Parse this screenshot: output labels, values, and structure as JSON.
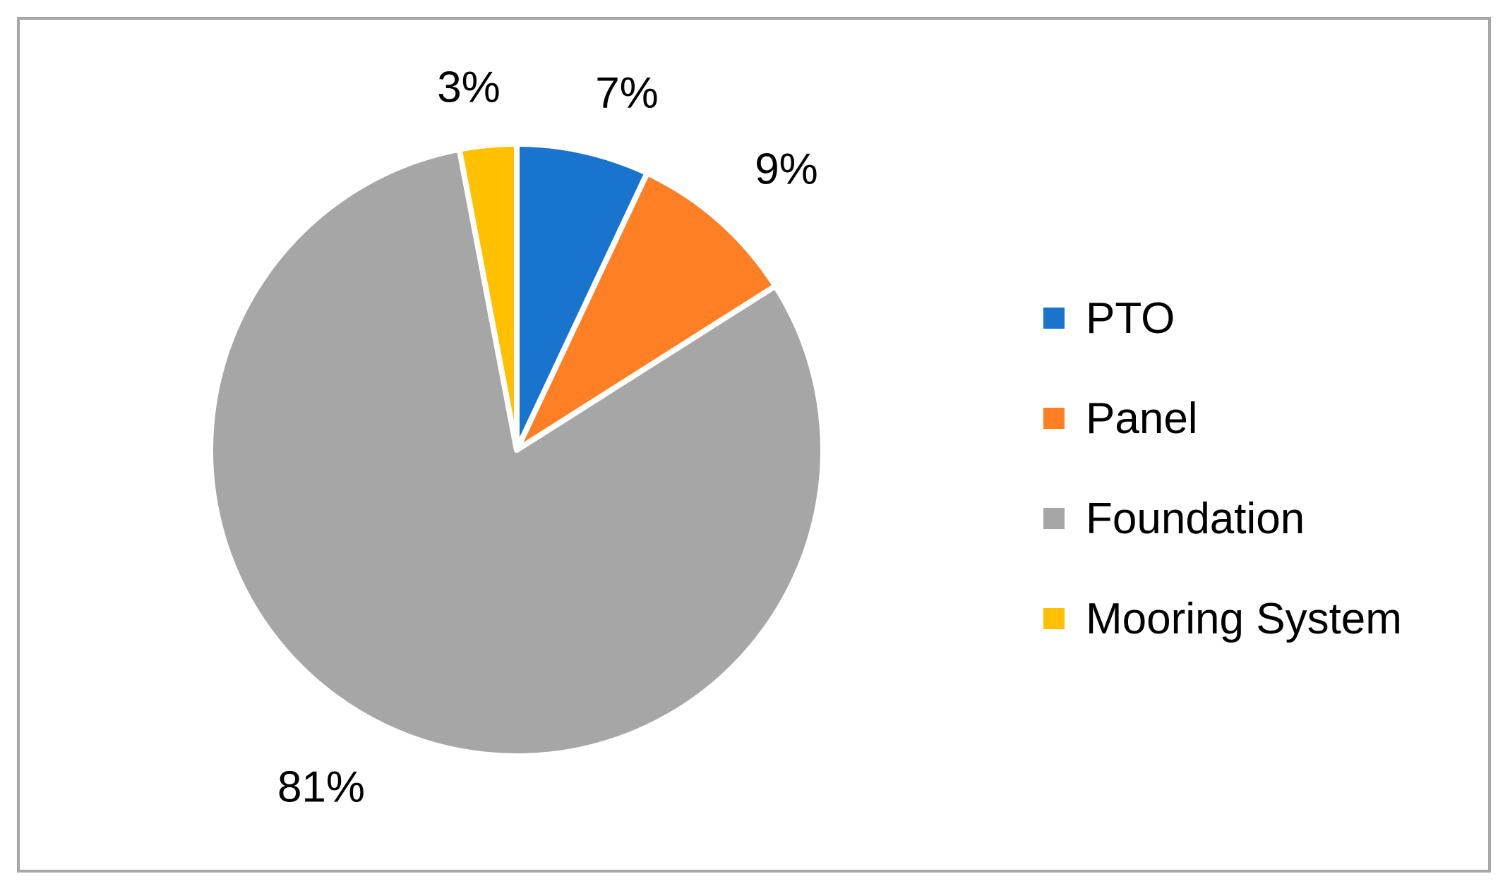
{
  "chart_data": {
    "type": "pie",
    "title": "",
    "categories": [
      "PTO",
      "Panel",
      "Foundation",
      "Mooring System"
    ],
    "values": [
      7,
      9,
      81,
      3
    ],
    "data_labels": [
      "7%",
      "9%",
      "81%",
      "3%"
    ],
    "colors": [
      "#1874CD",
      "#FF8024",
      "#A6A6A6",
      "#FFC000"
    ],
    "start_angle_deg": 0,
    "direction": "clockwise",
    "legend_position": "right",
    "slice_border_color": "#ffffff"
  },
  "legend": {
    "items": [
      {
        "label": "PTO",
        "color": "#1874CD"
      },
      {
        "label": "Panel",
        "color": "#FF8024"
      },
      {
        "label": "Foundation",
        "color": "#A6A6A6"
      },
      {
        "label": "Mooring System",
        "color": "#FFC000"
      }
    ]
  }
}
